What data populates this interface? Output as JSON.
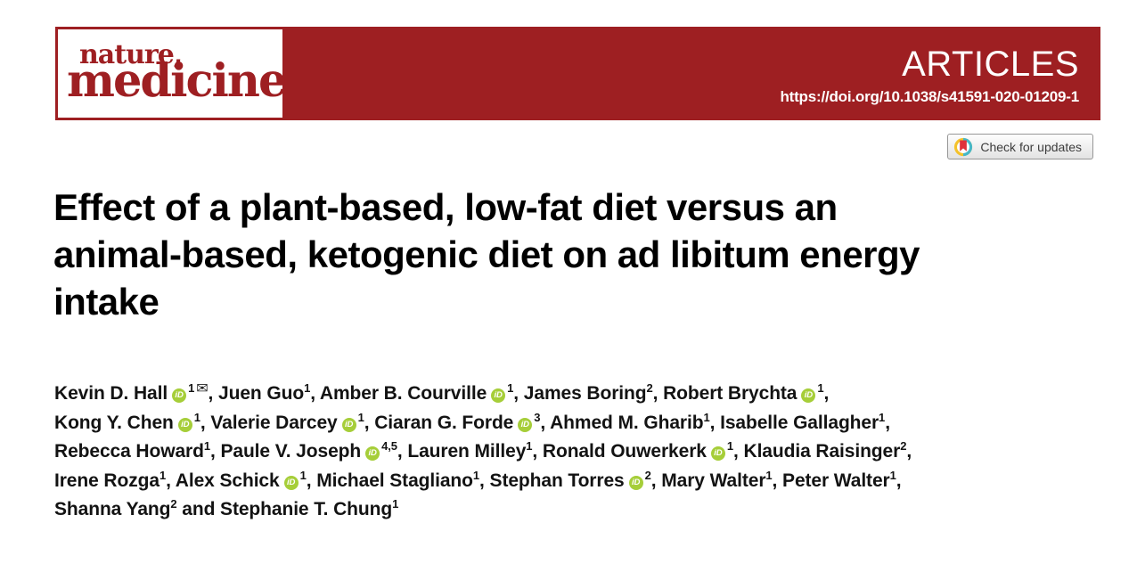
{
  "banner": {
    "journal_line1": "nature,",
    "journal_line2": "medicine",
    "section_label": "ARTICLES",
    "doi": "https://doi.org/10.1038/s41591-020-01209-1"
  },
  "check_badge": {
    "label": "Check for updates"
  },
  "icons": {
    "orcid_label": "iD",
    "envelope_glyph": "✉"
  },
  "colors": {
    "banner_red": "#9e1f22",
    "orcid_green": "#a6ce39",
    "crossmark_yellow": "#f4c22b",
    "crossmark_teal": "#45b7c8",
    "crossmark_red": "#e0303b"
  },
  "article": {
    "title_lines": [
      "Effect of a plant-based, low-fat diet versus an",
      "animal-based, ketogenic diet on ad libitum energy",
      "intake"
    ],
    "author_lines": [
      [
        {
          "name": "Kevin D. Hall",
          "orcid": true,
          "sup": "1",
          "envelope": true,
          "sep": ", "
        },
        {
          "name": "Juen Guo",
          "sup": "1",
          "sep": ", "
        },
        {
          "name": "Amber B. Courville",
          "orcid": true,
          "sup": "1",
          "sep": ", "
        },
        {
          "name": "James Boring",
          "sup": "2",
          "sep": ", "
        },
        {
          "name": "Robert Brychta",
          "orcid": true,
          "sup": "1",
          "sep": ","
        }
      ],
      [
        {
          "name": "Kong Y. Chen",
          "orcid": true,
          "sup": "1",
          "sep": ", "
        },
        {
          "name": "Valerie Darcey",
          "orcid": true,
          "sup": "1",
          "sep": ", "
        },
        {
          "name": "Ciaran G. Forde",
          "orcid": true,
          "sup": "3",
          "sep": ", "
        },
        {
          "name": "Ahmed M. Gharib",
          "sup": "1",
          "sep": ", "
        },
        {
          "name": "Isabelle Gallagher",
          "sup": "1",
          "sep": ","
        }
      ],
      [
        {
          "name": "Rebecca Howard",
          "sup": "1",
          "sep": ", "
        },
        {
          "name": "Paule V. Joseph",
          "orcid": true,
          "sup": "4,5",
          "sep": ", "
        },
        {
          "name": "Lauren Milley",
          "sup": "1",
          "sep": ", "
        },
        {
          "name": "Ronald Ouwerkerk",
          "orcid": true,
          "sup": "1",
          "sep": ", "
        },
        {
          "name": "Klaudia Raisinger",
          "sup": "2",
          "sep": ","
        }
      ],
      [
        {
          "name": "Irene Rozga",
          "sup": "1",
          "sep": ", "
        },
        {
          "name": "Alex Schick",
          "orcid": true,
          "sup": "1",
          "sep": ", "
        },
        {
          "name": "Michael Stagliano",
          "sup": "1",
          "sep": ", "
        },
        {
          "name": "Stephan Torres",
          "orcid": true,
          "sup": "2",
          "sep": ", "
        },
        {
          "name": "Mary Walter",
          "sup": "1",
          "sep": ", "
        },
        {
          "name": "Peter Walter",
          "sup": "1",
          "sep": ","
        }
      ],
      [
        {
          "name": "Shanna Yang",
          "sup": "2",
          "sep": " and "
        },
        {
          "name": "Stephanie T. Chung",
          "sup": "1",
          "sep": ""
        }
      ]
    ]
  }
}
